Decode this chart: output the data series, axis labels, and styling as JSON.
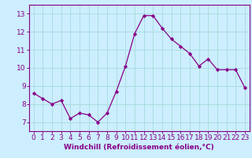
{
  "x": [
    0,
    1,
    2,
    3,
    4,
    5,
    6,
    7,
    8,
    9,
    10,
    11,
    12,
    13,
    14,
    15,
    16,
    17,
    18,
    19,
    20,
    21,
    22,
    23
  ],
  "y": [
    8.6,
    8.3,
    8.0,
    8.2,
    7.2,
    7.5,
    7.4,
    7.0,
    7.5,
    8.7,
    10.1,
    11.9,
    12.9,
    12.9,
    12.2,
    11.6,
    11.2,
    10.8,
    10.1,
    10.5,
    9.9,
    9.9,
    9.9,
    8.9
  ],
  "line_color": "#880088",
  "marker_color": "#880088",
  "bg_color": "#cceeff",
  "grid_color": "#aadddd",
  "xlabel": "Windchill (Refroidissement éolien,°C)",
  "ylabel": "",
  "xlim": [
    -0.5,
    23.5
  ],
  "ylim": [
    6.5,
    13.5
  ],
  "yticks": [
    7,
    8,
    9,
    10,
    11,
    12,
    13
  ],
  "xticks": [
    0,
    1,
    2,
    3,
    4,
    5,
    6,
    7,
    8,
    9,
    10,
    11,
    12,
    13,
    14,
    15,
    16,
    17,
    18,
    19,
    20,
    21,
    22,
    23
  ],
  "xlabel_color": "#880088",
  "tick_color": "#880088",
  "spine_color": "#880088",
  "xlabel_fontsize": 6.5,
  "tick_fontsize": 6.5
}
